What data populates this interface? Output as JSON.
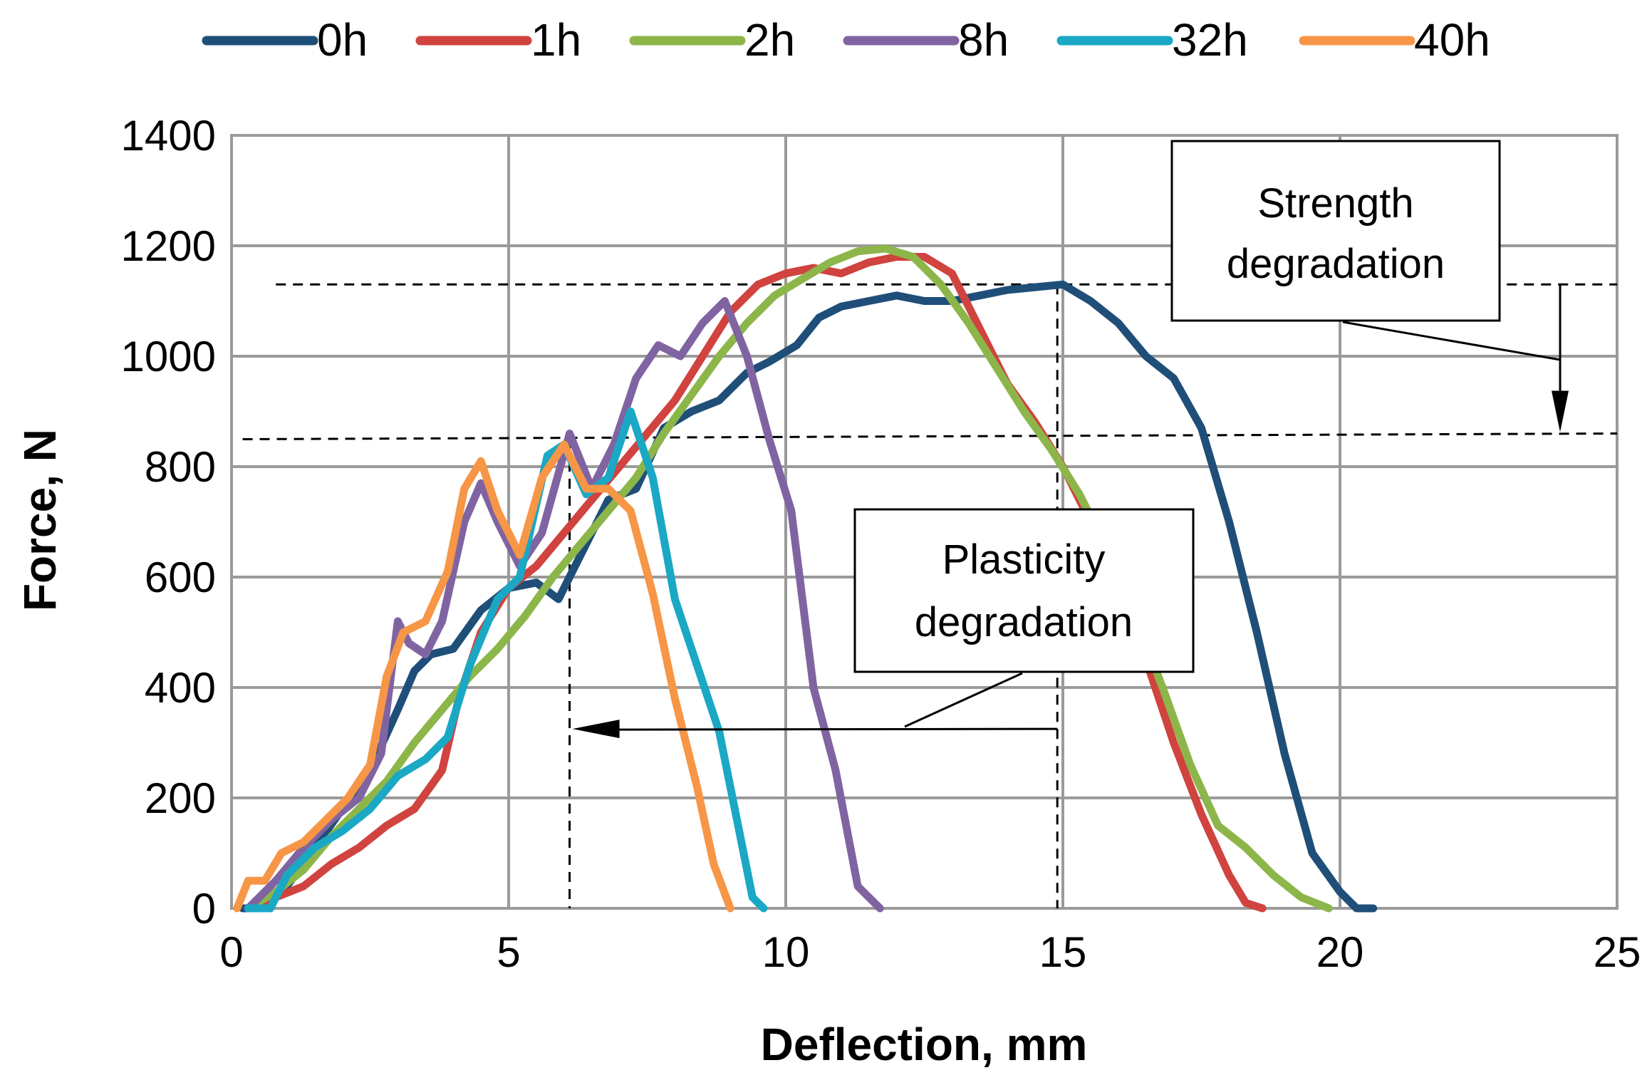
{
  "chart_data": {
    "type": "line",
    "title": "",
    "xlabel": "Deflection, mm",
    "ylabel": "Force, N",
    "xlim": [
      0,
      25
    ],
    "ylim": [
      0,
      1400
    ],
    "xticks": [
      0,
      5,
      10,
      15,
      20,
      25
    ],
    "yticks": [
      0,
      200,
      400,
      600,
      800,
      1000,
      1200,
      1400
    ],
    "grid": true,
    "legend_position": "top",
    "series": [
      {
        "name": "0h",
        "color": "#1f4e79",
        "x": [
          0.2,
          0.6,
          1.0,
          1.5,
          2.0,
          2.5,
          3.0,
          3.3,
          3.6,
          4.0,
          4.5,
          5.0,
          5.5,
          5.9,
          6.3,
          6.8,
          7.3,
          7.8,
          8.3,
          8.8,
          9.3,
          9.7,
          10.2,
          10.6,
          11.0,
          11.5,
          12.0,
          12.5,
          13.0,
          13.5,
          14.0,
          14.5,
          15.0,
          15.5,
          16.0,
          16.5,
          17.0,
          17.5,
          18.0,
          18.5,
          19.0,
          19.5,
          20.0,
          20.3,
          20.6
        ],
        "y": [
          0,
          0,
          40,
          110,
          180,
          250,
          360,
          430,
          460,
          470,
          540,
          580,
          590,
          560,
          640,
          740,
          760,
          870,
          900,
          920,
          970,
          990,
          1020,
          1070,
          1090,
          1100,
          1110,
          1100,
          1100,
          1110,
          1120,
          1125,
          1130,
          1100,
          1060,
          1000,
          960,
          870,
          700,
          500,
          280,
          100,
          30,
          0,
          0
        ]
      },
      {
        "name": "1h",
        "color": "#d0433e",
        "x": [
          0.3,
          0.8,
          1.3,
          1.8,
          2.3,
          2.8,
          3.3,
          3.8,
          4.1,
          4.5,
          5.0,
          5.5,
          6.0,
          6.5,
          7.0,
          7.5,
          8.0,
          8.5,
          9.0,
          9.5,
          10.0,
          10.5,
          11.0,
          11.5,
          12.0,
          12.5,
          13.0,
          13.5,
          14.0,
          14.5,
          15.0,
          15.5,
          16.0,
          16.5,
          17.0,
          17.5,
          18.0,
          18.3,
          18.6
        ],
        "y": [
          0,
          20,
          40,
          80,
          110,
          150,
          180,
          250,
          380,
          500,
          580,
          620,
          680,
          740,
          800,
          860,
          920,
          1000,
          1080,
          1130,
          1150,
          1160,
          1150,
          1170,
          1180,
          1180,
          1150,
          1050,
          950,
          880,
          800,
          700,
          600,
          450,
          300,
          170,
          60,
          10,
          0
        ]
      },
      {
        "name": "2h",
        "color": "#8db64a",
        "x": [
          0.3,
          0.8,
          1.3,
          1.8,
          2.3,
          2.8,
          3.3,
          3.8,
          4.3,
          4.8,
          5.3,
          5.8,
          6.3,
          6.8,
          7.3,
          7.8,
          8.3,
          8.8,
          9.3,
          9.8,
          10.3,
          10.8,
          11.3,
          11.8,
          12.3,
          12.8,
          13.3,
          13.8,
          14.3,
          14.8,
          15.3,
          15.8,
          16.3,
          16.8,
          17.3,
          17.8,
          18.3,
          18.8,
          19.3,
          19.8
        ],
        "y": [
          0,
          30,
          70,
          130,
          180,
          230,
          300,
          360,
          420,
          470,
          530,
          600,
          660,
          720,
          780,
          860,
          930,
          1000,
          1060,
          1110,
          1140,
          1170,
          1190,
          1195,
          1180,
          1130,
          1060,
          980,
          900,
          830,
          750,
          650,
          530,
          400,
          260,
          150,
          110,
          60,
          20,
          0
        ]
      },
      {
        "name": "8h",
        "color": "#8064a2",
        "x": [
          0.3,
          0.8,
          1.3,
          1.8,
          2.3,
          2.7,
          3.0,
          3.2,
          3.5,
          3.8,
          4.2,
          4.5,
          4.8,
          5.2,
          5.6,
          6.1,
          6.5,
          6.9,
          7.3,
          7.7,
          8.1,
          8.5,
          8.9,
          9.3,
          9.7,
          10.1,
          10.5,
          10.9,
          11.3,
          11.7
        ],
        "y": [
          0,
          50,
          110,
          160,
          200,
          280,
          520,
          480,
          460,
          520,
          700,
          770,
          700,
          620,
          680,
          860,
          760,
          840,
          960,
          1020,
          1000,
          1060,
          1100,
          1000,
          850,
          720,
          400,
          250,
          40,
          0
        ]
      },
      {
        "name": "32h",
        "color": "#1aa8c4",
        "x": [
          0.3,
          0.7,
          1.0,
          1.5,
          2.0,
          2.5,
          3.0,
          3.5,
          3.9,
          4.3,
          4.8,
          5.2,
          5.7,
          6.0,
          6.4,
          6.8,
          7.2,
          7.6,
          8.0,
          8.4,
          8.8,
          9.1,
          9.4,
          9.6
        ],
        "y": [
          0,
          0,
          60,
          110,
          140,
          180,
          240,
          270,
          310,
          440,
          560,
          600,
          820,
          840,
          750,
          780,
          900,
          780,
          560,
          440,
          320,
          170,
          20,
          0
        ]
      },
      {
        "name": "40h",
        "color": "#f79646",
        "x": [
          0.1,
          0.3,
          0.6,
          0.9,
          1.3,
          1.7,
          2.1,
          2.5,
          2.8,
          3.1,
          3.5,
          3.9,
          4.2,
          4.5,
          4.8,
          5.2,
          5.6,
          6.0,
          6.4,
          6.8,
          7.2,
          7.6,
          8.0,
          8.4,
          8.7,
          9.0
        ],
        "y": [
          0,
          50,
          50,
          100,
          120,
          160,
          200,
          260,
          420,
          500,
          520,
          610,
          760,
          810,
          720,
          640,
          780,
          840,
          760,
          760,
          720,
          570,
          380,
          220,
          80,
          0
        ]
      }
    ],
    "annotations": [
      {
        "text_lines": [
          "Strength",
          "degradation"
        ],
        "from_y": 1130,
        "to_y": 860
      },
      {
        "text_lines": [
          "Plasticity",
          "degradation"
        ],
        "from_x": 14.9,
        "to_x": 6.1
      }
    ]
  }
}
